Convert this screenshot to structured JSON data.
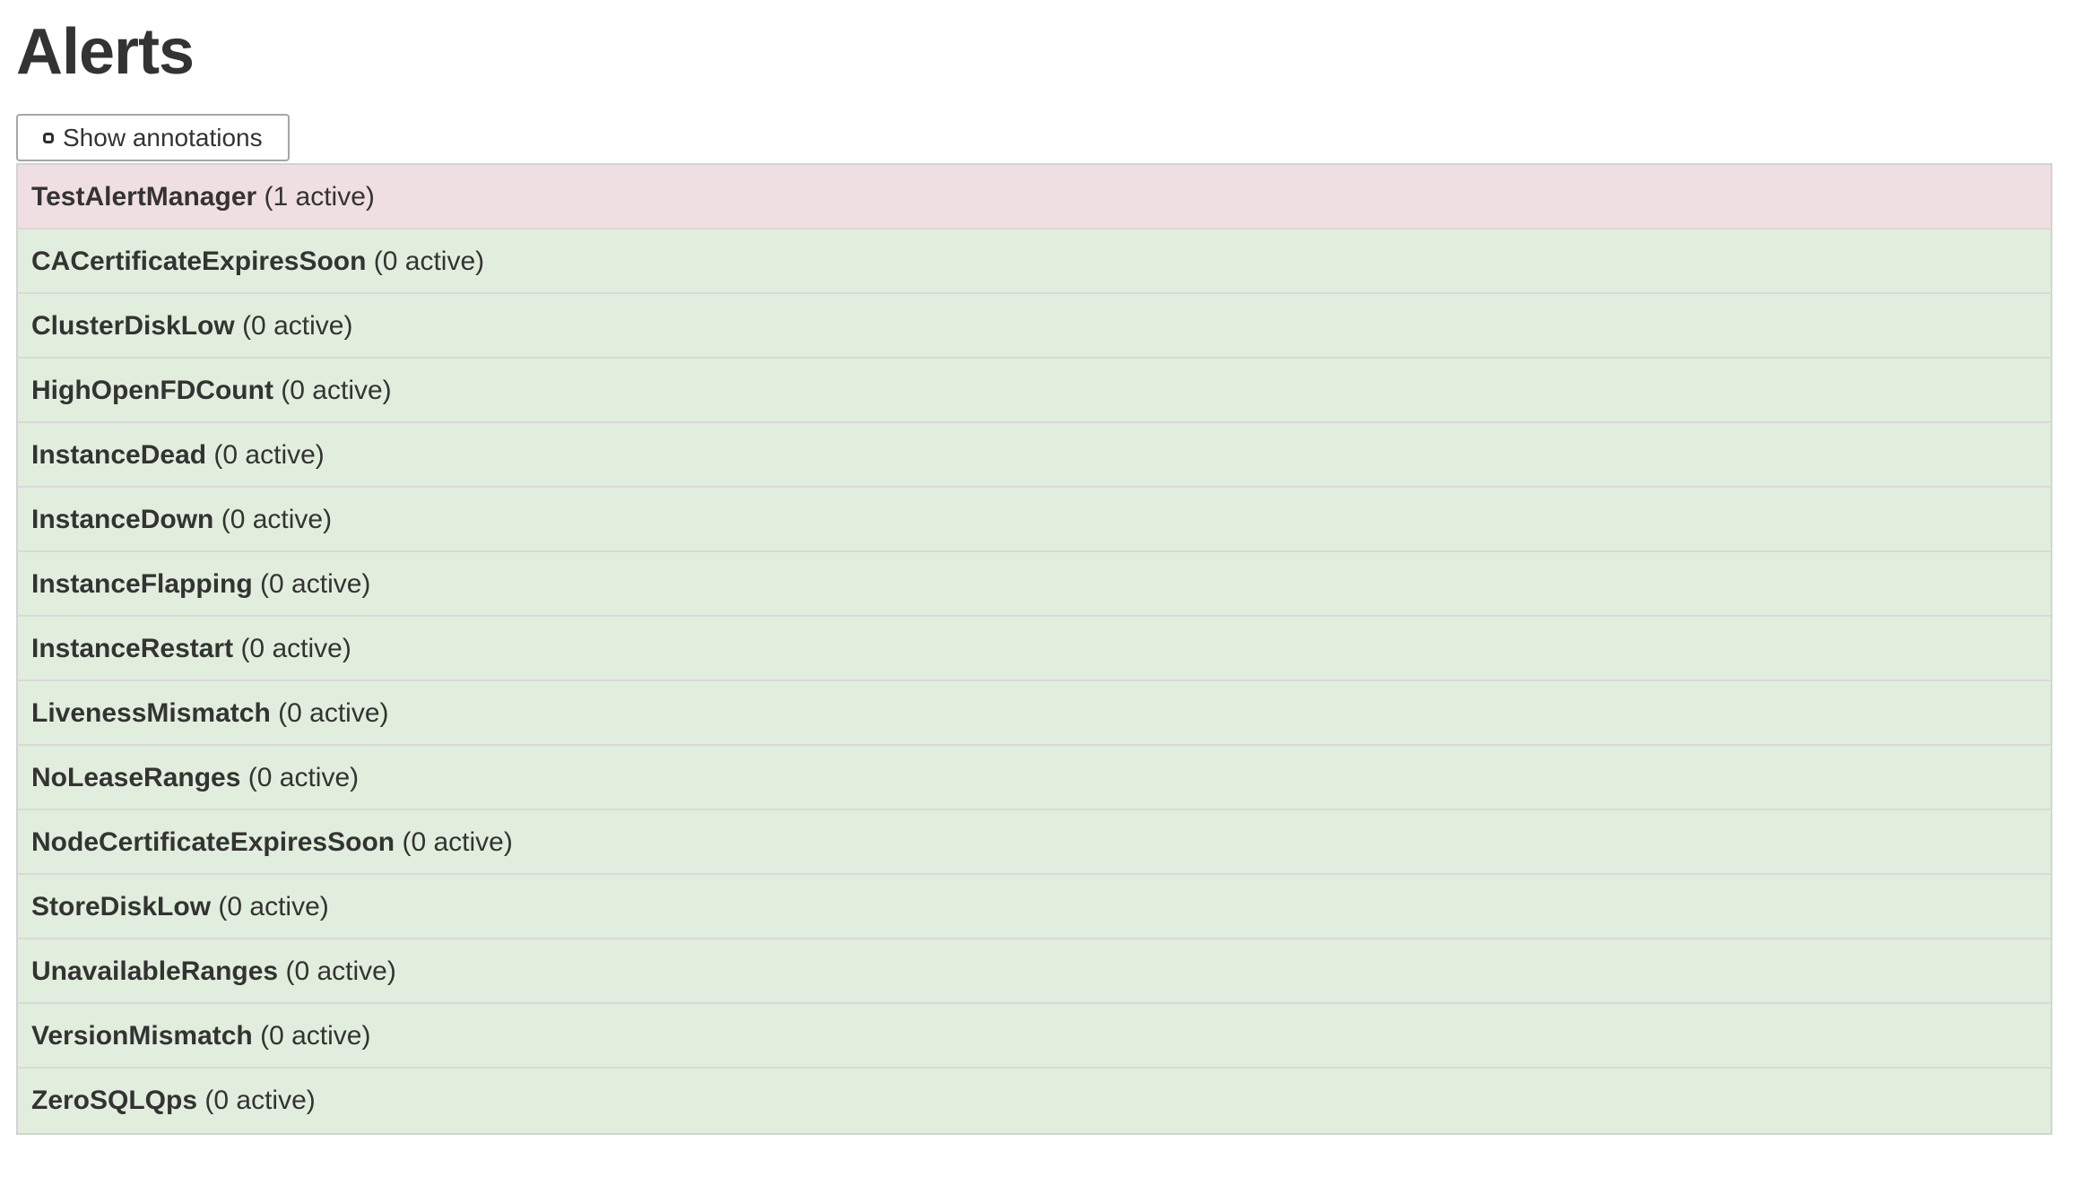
{
  "page": {
    "title": "Alerts"
  },
  "controls": {
    "show_annotations_label": "Show annotations",
    "checkbox_checked": false
  },
  "alerts": {
    "items": [
      {
        "name": "TestAlertManager",
        "active_count": 1,
        "count_label": "(1 active)",
        "state": "danger"
      },
      {
        "name": "CACertificateExpiresSoon",
        "active_count": 0,
        "count_label": "(0 active)",
        "state": "success"
      },
      {
        "name": "ClusterDiskLow",
        "active_count": 0,
        "count_label": "(0 active)",
        "state": "success"
      },
      {
        "name": "HighOpenFDCount",
        "active_count": 0,
        "count_label": "(0 active)",
        "state": "success"
      },
      {
        "name": "InstanceDead",
        "active_count": 0,
        "count_label": "(0 active)",
        "state": "success"
      },
      {
        "name": "InstanceDown",
        "active_count": 0,
        "count_label": "(0 active)",
        "state": "success"
      },
      {
        "name": "InstanceFlapping",
        "active_count": 0,
        "count_label": "(0 active)",
        "state": "success"
      },
      {
        "name": "InstanceRestart",
        "active_count": 0,
        "count_label": "(0 active)",
        "state": "success"
      },
      {
        "name": "LivenessMismatch",
        "active_count": 0,
        "count_label": "(0 active)",
        "state": "success"
      },
      {
        "name": "NoLeaseRanges",
        "active_count": 0,
        "count_label": "(0 active)",
        "state": "success"
      },
      {
        "name": "NodeCertificateExpiresSoon",
        "active_count": 0,
        "count_label": "(0 active)",
        "state": "success"
      },
      {
        "name": "StoreDiskLow",
        "active_count": 0,
        "count_label": "(0 active)",
        "state": "success"
      },
      {
        "name": "UnavailableRanges",
        "active_count": 0,
        "count_label": "(0 active)",
        "state": "success"
      },
      {
        "name": "VersionMismatch",
        "active_count": 0,
        "count_label": "(0 active)",
        "state": "success"
      },
      {
        "name": "ZeroSQLQps",
        "active_count": 0,
        "count_label": "(0 active)",
        "state": "success"
      }
    ]
  },
  "colors": {
    "danger_bg": "#f0dfe2",
    "success_bg": "#e2eedd",
    "text": "#333333",
    "row_border": "#d9d9d9",
    "table_border": "#d3d3d3",
    "button_border": "#a6a6a6"
  }
}
